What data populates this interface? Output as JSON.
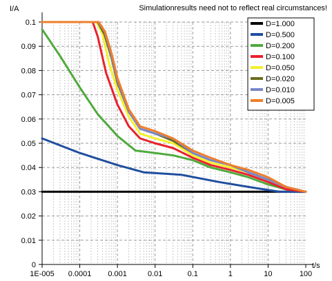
{
  "chart_data": {
    "type": "line",
    "title": "",
    "note": "Simulationresults need not to reflect real circumstances!",
    "ylabel": "I/A",
    "xlabel": "t/s",
    "x_scale": "log",
    "xlim": [
      1e-05,
      100
    ],
    "ylim": [
      0,
      0.1
    ],
    "grid": true,
    "legend_position": "top-right",
    "x_ticks": [
      {
        "v": 1e-05,
        "label": "1E-005"
      },
      {
        "v": 0.0001,
        "label": "0.0001"
      },
      {
        "v": 0.001,
        "label": "0.001"
      },
      {
        "v": 0.01,
        "label": "0.01"
      },
      {
        "v": 0.1,
        "label": "0.1"
      },
      {
        "v": 1,
        "label": "1"
      },
      {
        "v": 10,
        "label": "10"
      },
      {
        "v": 100,
        "label": "100"
      }
    ],
    "y_ticks": [
      {
        "v": 0,
        "label": "0"
      },
      {
        "v": 0.01,
        "label": "0.01"
      },
      {
        "v": 0.02,
        "label": "0.02"
      },
      {
        "v": 0.03,
        "label": "0.03"
      },
      {
        "v": 0.04,
        "label": "0.04"
      },
      {
        "v": 0.05,
        "label": "0.05"
      },
      {
        "v": 0.06,
        "label": "0.06"
      },
      {
        "v": 0.07,
        "label": "0.07"
      },
      {
        "v": 0.08,
        "label": "0.08"
      },
      {
        "v": 0.09,
        "label": "0.09"
      },
      {
        "v": 0.1,
        "label": "0.1"
      }
    ],
    "series": [
      {
        "name": "D=1.000",
        "color": "#000000",
        "x": [
          1e-05,
          100
        ],
        "y": [
          0.03,
          0.03
        ]
      },
      {
        "name": "D=0.500",
        "color": "#1f4e9e",
        "x": [
          1e-05,
          0.0001,
          0.001,
          0.005,
          0.05,
          0.5,
          3,
          20,
          100
        ],
        "y": [
          0.052,
          0.046,
          0.041,
          0.038,
          0.037,
          0.034,
          0.032,
          0.03,
          0.03
        ]
      },
      {
        "name": "D=0.200",
        "color": "#4faa3c",
        "x": [
          1e-05,
          3e-05,
          0.0001,
          0.0003,
          0.001,
          0.003,
          0.01,
          0.03,
          0.1,
          0.3,
          1,
          3,
          10,
          30,
          100
        ],
        "y": [
          0.097,
          0.086,
          0.073,
          0.062,
          0.053,
          0.047,
          0.046,
          0.045,
          0.043,
          0.04,
          0.038,
          0.036,
          0.033,
          0.031,
          0.03
        ]
      },
      {
        "name": "D=0.100",
        "color": "#e8212b",
        "x": [
          1e-05,
          0.00022,
          0.0003,
          0.0005,
          0.001,
          0.002,
          0.004,
          0.01,
          0.03,
          0.1,
          0.3,
          1,
          3,
          10,
          30,
          100
        ],
        "y": [
          0.1,
          0.1,
          0.094,
          0.079,
          0.066,
          0.057,
          0.052,
          0.05,
          0.048,
          0.044,
          0.041,
          0.039,
          0.037,
          0.034,
          0.031,
          0.03
        ]
      },
      {
        "name": "D=0.050",
        "color": "#f5ef2c",
        "x": [
          1e-05,
          0.00028,
          0.0004,
          0.0006,
          0.001,
          0.002,
          0.004,
          0.01,
          0.03,
          0.1,
          0.3,
          1,
          3,
          10,
          30,
          100
        ],
        "y": [
          0.1,
          0.1,
          0.095,
          0.083,
          0.072,
          0.061,
          0.054,
          0.052,
          0.05,
          0.045,
          0.042,
          0.04,
          0.038,
          0.035,
          0.032,
          0.03
        ]
      },
      {
        "name": "D=0.020",
        "color": "#6b6b1e",
        "x": [
          1e-05,
          0.0003,
          0.00045,
          0.0007,
          0.001,
          0.002,
          0.004,
          0.01,
          0.03,
          0.1,
          0.3,
          1,
          3,
          10,
          30,
          100
        ],
        "y": [
          0.1,
          0.1,
          0.095,
          0.085,
          0.075,
          0.063,
          0.056,
          0.054,
          0.051,
          0.046,
          0.043,
          0.041,
          0.038,
          0.035,
          0.032,
          0.03
        ]
      },
      {
        "name": "D=0.010",
        "color": "#7b86c8",
        "x": [
          1e-05,
          0.00031,
          0.00046,
          0.0007,
          0.001,
          0.002,
          0.004,
          0.01,
          0.03,
          0.1,
          0.3,
          1,
          3,
          10,
          30,
          100
        ],
        "y": [
          0.1,
          0.1,
          0.096,
          0.086,
          0.076,
          0.063,
          0.056,
          0.054,
          0.052,
          0.046,
          0.043,
          0.041,
          0.038,
          0.035,
          0.032,
          0.03
        ]
      },
      {
        "name": "D=0.005",
        "color": "#f07e2a",
        "x": [
          1e-05,
          0.00032,
          0.00047,
          0.0007,
          0.001,
          0.002,
          0.004,
          0.01,
          0.03,
          0.1,
          0.3,
          1,
          3,
          10,
          30,
          100
        ],
        "y": [
          0.1,
          0.1,
          0.096,
          0.087,
          0.077,
          0.064,
          0.057,
          0.055,
          0.052,
          0.047,
          0.044,
          0.041,
          0.039,
          0.036,
          0.032,
          0.03
        ]
      }
    ]
  }
}
